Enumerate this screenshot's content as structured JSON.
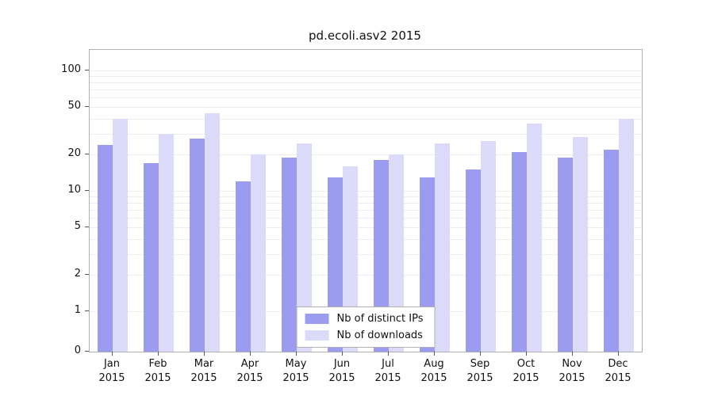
{
  "chart_data": {
    "type": "bar",
    "title": "pd.ecoli.asv2 2015",
    "categories": [
      "Jan 2015",
      "Feb 2015",
      "Mar 2015",
      "Apr 2015",
      "May 2015",
      "Jun 2015",
      "Jul 2015",
      "Aug 2015",
      "Sep 2015",
      "Oct 2015",
      "Nov 2015",
      "Dec 2015"
    ],
    "series": [
      {
        "name": "Nb of distinct IPs",
        "color": "#9b9bef",
        "values": [
          24,
          17,
          27,
          12,
          19,
          13,
          18,
          13,
          15,
          21,
          19,
          22
        ]
      },
      {
        "name": "Nb of downloads",
        "color": "#dbdbf9",
        "values": [
          40,
          30,
          44,
          20,
          25,
          16,
          20,
          25,
          26,
          36,
          28,
          40
        ]
      }
    ],
    "yscale": "symlog",
    "y_ticks": [
      0,
      1,
      2,
      5,
      10,
      20,
      50,
      100
    ],
    "grid_values": [
      1,
      2,
      3,
      4,
      5,
      6,
      7,
      8,
      9,
      10,
      20,
      30,
      40,
      50,
      60,
      70,
      80,
      90,
      100
    ],
    "ylim": [
      0,
      110
    ],
    "grid": true,
    "legend_position": "lower center",
    "grid_color": "#ededed",
    "axis_color": "#b0b0b0",
    "text_color": "#111111"
  }
}
